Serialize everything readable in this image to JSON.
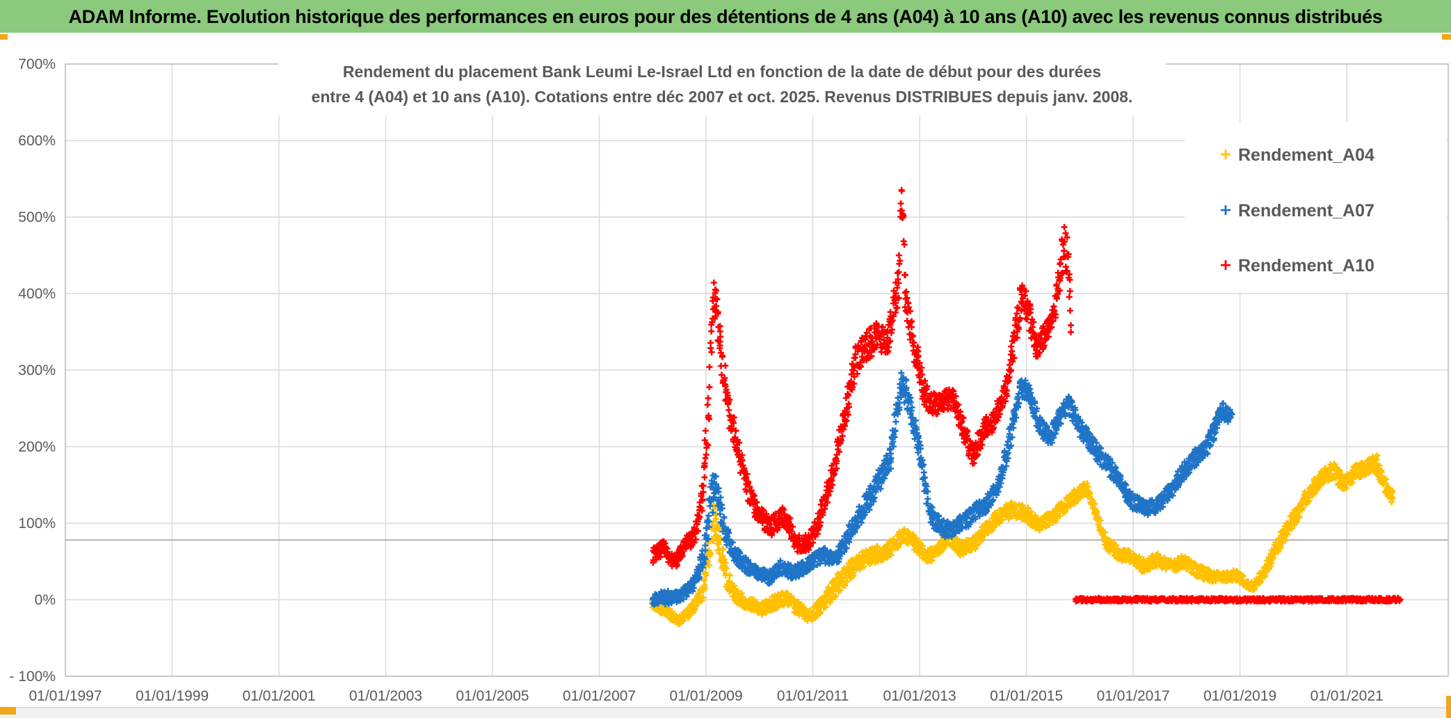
{
  "header": {
    "title": "ADAM Informe. Evolution historique des performances en euros pour des détentions de 4 ans (A04) à 10 ans (A10) avec les revenus connus distribués"
  },
  "colors": {
    "header_bg": "#8BC97D",
    "header_text": "#000000",
    "text_gray": "#595959",
    "grid": "#D9D9D9",
    "axis_border": "#BFBFBF",
    "reference_line": "#A6A6A6",
    "gold_accent": "#F2A71B",
    "bottom_strip": "#F1F1F1",
    "series_a04": "#FFC000",
    "series_a07": "#1F74C8",
    "series_a10": "#FF0000"
  },
  "chart_data": {
    "type": "scatter",
    "title_lines": [
      "Rendement du placement Bank Leumi Le-Israel Ltd en fonction de la date de début pour des durées",
      "entre 4 (A04) et 10 ans (A10). Cotations entre déc 2007 et oct. 2025. Revenus DISTRIBUES depuis janv. 2008."
    ],
    "x_axis": {
      "tick_labels": [
        "01/01/1997",
        "01/01/1999",
        "01/01/2001",
        "01/01/2003",
        "01/01/2005",
        "01/01/2007",
        "01/01/2009",
        "01/01/2011",
        "01/01/2013",
        "01/01/2015",
        "01/01/2017",
        "01/01/2019",
        "01/01/2021"
      ],
      "tick_years": [
        1997,
        1999,
        2001,
        2003,
        2005,
        2007,
        2009,
        2011,
        2013,
        2015,
        2017,
        2019,
        2021
      ],
      "range_years": [
        1997,
        2022.9
      ]
    },
    "y_axis": {
      "tick_labels": [
        "700%",
        "600%",
        "500%",
        "400%",
        "300%",
        "200%",
        "100%",
        "0%",
        "- 100%"
      ],
      "tick_values": [
        700,
        600,
        500,
        400,
        300,
        200,
        100,
        0,
        -100
      ],
      "range": [
        -100,
        700
      ]
    },
    "reference_line_pct": 78,
    "legend": [
      {
        "label": "Rendement_A04",
        "color": "#FFC000"
      },
      {
        "label": "Rendement_A07",
        "color": "#1F74C8"
      },
      {
        "label": "Rendement_A10",
        "color": "#FF0000"
      }
    ],
    "series": [
      {
        "name": "Rendement_A04",
        "color": "#FFC000",
        "points": [
          [
            2008.0,
            -4,
            7
          ],
          [
            2008.2,
            -14,
            7
          ],
          [
            2008.5,
            -27,
            6
          ],
          [
            2008.75,
            -12,
            7
          ],
          [
            2008.95,
            15,
            12
          ],
          [
            2009.1,
            85,
            25
          ],
          [
            2009.15,
            110,
            28
          ],
          [
            2009.25,
            70,
            20
          ],
          [
            2009.4,
            25,
            12
          ],
          [
            2009.6,
            2,
            9
          ],
          [
            2009.85,
            -6,
            8
          ],
          [
            2010.05,
            -12,
            8
          ],
          [
            2010.25,
            -4,
            9
          ],
          [
            2010.5,
            2,
            9
          ],
          [
            2010.7,
            -10,
            9
          ],
          [
            2010.95,
            -22,
            8
          ],
          [
            2011.15,
            -8,
            9
          ],
          [
            2011.4,
            15,
            13
          ],
          [
            2011.65,
            35,
            13
          ],
          [
            2011.9,
            52,
            12
          ],
          [
            2012.2,
            58,
            12
          ],
          [
            2012.45,
            66,
            10
          ],
          [
            2012.7,
            86,
            10
          ],
          [
            2012.95,
            70,
            10
          ],
          [
            2013.15,
            56,
            9
          ],
          [
            2013.35,
            65,
            9
          ],
          [
            2013.55,
            83,
            10
          ],
          [
            2013.75,
            66,
            9
          ],
          [
            2014.0,
            72,
            9
          ],
          [
            2014.25,
            92,
            9
          ],
          [
            2014.5,
            110,
            10
          ],
          [
            2014.75,
            118,
            10
          ],
          [
            2015.0,
            112,
            10
          ],
          [
            2015.25,
            98,
            9
          ],
          [
            2015.5,
            108,
            9
          ],
          [
            2015.75,
            125,
            9
          ],
          [
            2016.0,
            140,
            9
          ],
          [
            2016.12,
            147,
            8
          ],
          [
            2016.3,
            115,
            10
          ],
          [
            2016.5,
            75,
            10
          ],
          [
            2016.7,
            62,
            9
          ],
          [
            2016.95,
            55,
            9
          ],
          [
            2017.2,
            44,
            9
          ],
          [
            2017.45,
            52,
            8
          ],
          [
            2017.7,
            44,
            8
          ],
          [
            2017.95,
            50,
            8
          ],
          [
            2018.2,
            38,
            8
          ],
          [
            2018.45,
            31,
            8
          ],
          [
            2018.7,
            28,
            7
          ],
          [
            2018.95,
            33,
            7
          ],
          [
            2019.1,
            22,
            6
          ],
          [
            2019.25,
            17,
            6
          ],
          [
            2019.45,
            35,
            8
          ],
          [
            2019.65,
            65,
            9
          ],
          [
            2019.85,
            88,
            10
          ],
          [
            2020.05,
            110,
            10
          ],
          [
            2020.3,
            140,
            10
          ],
          [
            2020.55,
            160,
            10
          ],
          [
            2020.75,
            168,
            12
          ],
          [
            2020.95,
            152,
            10
          ],
          [
            2021.15,
            165,
            10
          ],
          [
            2021.35,
            172,
            10
          ],
          [
            2021.55,
            180,
            11
          ],
          [
            2021.7,
            152,
            10
          ],
          [
            2021.87,
            133,
            8
          ]
        ]
      },
      {
        "name": "Rendement_A07",
        "color": "#1F74C8",
        "points": [
          [
            2008.0,
            0,
            6
          ],
          [
            2008.2,
            2,
            10
          ],
          [
            2008.5,
            4,
            7
          ],
          [
            2008.75,
            18,
            8
          ],
          [
            2008.95,
            55,
            14
          ],
          [
            2009.1,
            130,
            25
          ],
          [
            2009.17,
            160,
            18
          ],
          [
            2009.3,
            105,
            18
          ],
          [
            2009.45,
            68,
            12
          ],
          [
            2009.65,
            50,
            10
          ],
          [
            2009.9,
            38,
            9
          ],
          [
            2010.15,
            28,
            9
          ],
          [
            2010.4,
            42,
            9
          ],
          [
            2010.65,
            35,
            9
          ],
          [
            2010.9,
            45,
            9
          ],
          [
            2011.15,
            58,
            10
          ],
          [
            2011.45,
            55,
            10
          ],
          [
            2011.7,
            88,
            12
          ],
          [
            2011.95,
            120,
            14
          ],
          [
            2012.2,
            150,
            15
          ],
          [
            2012.45,
            185,
            15
          ],
          [
            2012.65,
            280,
            18
          ],
          [
            2012.8,
            262,
            18
          ],
          [
            2013.0,
            195,
            15
          ],
          [
            2013.2,
            110,
            13
          ],
          [
            2013.4,
            95,
            11
          ],
          [
            2013.6,
            90,
            11
          ],
          [
            2013.8,
            100,
            11
          ],
          [
            2014.0,
            112,
            11
          ],
          [
            2014.25,
            125,
            11
          ],
          [
            2014.5,
            152,
            12
          ],
          [
            2014.7,
            215,
            15
          ],
          [
            2014.9,
            280,
            14
          ],
          [
            2015.05,
            268,
            13
          ],
          [
            2015.25,
            228,
            12
          ],
          [
            2015.45,
            212,
            12
          ],
          [
            2015.65,
            242,
            12
          ],
          [
            2015.8,
            255,
            12
          ],
          [
            2016.0,
            225,
            12
          ],
          [
            2016.2,
            205,
            12
          ],
          [
            2016.45,
            182,
            12
          ],
          [
            2016.7,
            162,
            11
          ],
          [
            2016.95,
            130,
            10
          ],
          [
            2017.2,
            120,
            10
          ],
          [
            2017.45,
            122,
            10
          ],
          [
            2017.7,
            142,
            10
          ],
          [
            2017.95,
            168,
            11
          ],
          [
            2018.15,
            185,
            11
          ],
          [
            2018.35,
            196,
            11
          ],
          [
            2018.5,
            218,
            11
          ],
          [
            2018.65,
            248,
            11
          ],
          [
            2018.85,
            238,
            10
          ]
        ]
      },
      {
        "name": "Rendement_A10",
        "color": "#FF0000",
        "points": [
          [
            2008.0,
            57,
            10
          ],
          [
            2008.2,
            68,
            10
          ],
          [
            2008.4,
            48,
            9
          ],
          [
            2008.6,
            70,
            10
          ],
          [
            2008.8,
            85,
            12
          ],
          [
            2008.95,
            140,
            20
          ],
          [
            2009.05,
            260,
            35
          ],
          [
            2009.13,
            400,
            30
          ],
          [
            2009.2,
            380,
            25
          ],
          [
            2009.3,
            310,
            22
          ],
          [
            2009.45,
            240,
            20
          ],
          [
            2009.6,
            195,
            16
          ],
          [
            2009.8,
            140,
            14
          ],
          [
            2010.0,
            110,
            13
          ],
          [
            2010.2,
            95,
            13
          ],
          [
            2010.45,
            110,
            12
          ],
          [
            2010.7,
            75,
            12
          ],
          [
            2010.9,
            72,
            12
          ],
          [
            2011.1,
            100,
            13
          ],
          [
            2011.35,
            160,
            16
          ],
          [
            2011.6,
            240,
            18
          ],
          [
            2011.8,
            310,
            20
          ],
          [
            2012.0,
            330,
            20
          ],
          [
            2012.2,
            345,
            18
          ],
          [
            2012.4,
            335,
            18
          ],
          [
            2012.6,
            420,
            30
          ],
          [
            2012.67,
            520,
            48
          ],
          [
            2012.75,
            380,
            25
          ],
          [
            2012.9,
            330,
            20
          ],
          [
            2013.1,
            268,
            18
          ],
          [
            2013.3,
            255,
            15
          ],
          [
            2013.5,
            262,
            14
          ],
          [
            2013.65,
            262,
            14
          ],
          [
            2013.85,
            215,
            15
          ],
          [
            2014.0,
            190,
            14
          ],
          [
            2014.2,
            222,
            14
          ],
          [
            2014.4,
            235,
            14
          ],
          [
            2014.6,
            270,
            15
          ],
          [
            2014.75,
            330,
            20
          ],
          [
            2014.9,
            395,
            22
          ],
          [
            2015.05,
            375,
            20
          ],
          [
            2015.2,
            330,
            18
          ],
          [
            2015.35,
            345,
            15
          ],
          [
            2015.5,
            370,
            15
          ],
          [
            2015.62,
            420,
            20
          ],
          [
            2015.72,
            470,
            32
          ],
          [
            2015.8,
            430,
            30
          ],
          [
            2015.85,
            340,
            25
          ]
        ],
        "flat_zero_segment": {
          "from_year": 2015.92,
          "to_year": 2022.0,
          "value_pct": 0
        }
      }
    ]
  }
}
